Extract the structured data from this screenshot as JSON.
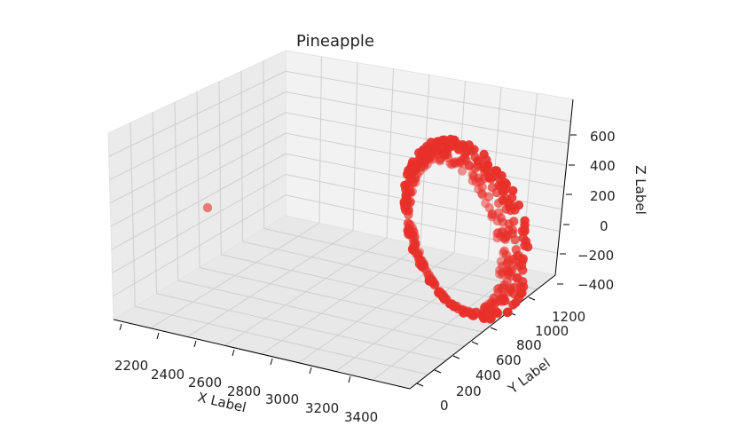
{
  "chart_data": {
    "type": "scatter",
    "projection": "3d",
    "title": "Pineapple",
    "xlabel": "X Label",
    "ylabel": "Y Label",
    "zlabel": "Z Label",
    "x_ticks": [
      "2200",
      "2400",
      "2600",
      "2800",
      "3000",
      "3200",
      "3400"
    ],
    "y_ticks": [
      "0",
      "200",
      "400",
      "600",
      "800",
      "1000",
      "1200"
    ],
    "z_ticks": [
      "600",
      "400",
      "200",
      "0",
      "−200",
      "−400"
    ],
    "xlim": [
      2150,
      3450
    ],
    "ylim": [
      0,
      1250
    ],
    "zlim": [
      -450,
      650
    ],
    "grid": true,
    "marker_color": "#e8302a",
    "marker_opacity": 0.8,
    "series": [
      {
        "outlier": [
          [
            2350,
            1150,
            150
          ]
        ],
        "cluster_description": "about 430 points forming a curved pineapple-shaped surface",
        "cluster_x_range": [
          2900,
          3400
        ],
        "cluster_y_range": [
          0,
          1100
        ],
        "cluster_z_range": [
          -400,
          600
        ]
      }
    ]
  }
}
